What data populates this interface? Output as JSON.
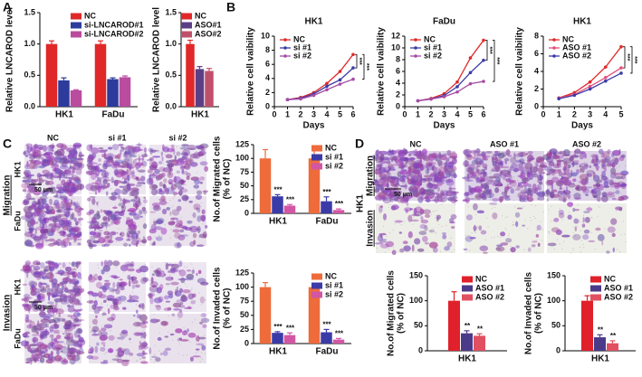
{
  "panel_labels": [
    "A",
    "B",
    "C",
    "D"
  ],
  "micrographs": [
    {
      "columns": [
        "NC",
        "si #1",
        "si #2"
      ],
      "rows": [
        "HK1",
        "FaDu",
        "HK1",
        "FaDu"
      ],
      "groups": [
        "Migration",
        "Invasion"
      ],
      "scale_bar": "50 μm"
    },
    {
      "columns": [
        "NC",
        "ASO #1",
        "ASO #2"
      ],
      "rows": [
        "Migration",
        "Invasion"
      ],
      "group": "HK1",
      "scale_bar": "50 μm"
    }
  ],
  "chart_data": [
    {
      "type": "bar",
      "ylabel": [
        "Relative LNCAROD level"
      ],
      "categories": [
        "HK1",
        "FaDu"
      ],
      "legend": "upper right",
      "ylim": [
        0,
        1.5
      ],
      "yticks": [
        {
          "value": 0,
          "label": "0.0"
        },
        {
          "value": 0.5,
          "label": "0.5"
        },
        {
          "value": 1,
          "label": "1.0"
        },
        {
          "value": 1.5,
          "label": "1.5"
        }
      ],
      "series": [
        {
          "name": "NC",
          "color": "#e02828",
          "values": [
            1.0,
            1.0
          ],
          "errors": [
            0.05,
            0.05
          ]
        },
        {
          "name": "si-LNCAROD#1",
          "color": "#2c3b9c",
          "values": [
            0.42,
            0.44
          ],
          "errors": [
            0.04,
            0.02
          ]
        },
        {
          "name": "si-LNCAROD#2",
          "color": "#b94c9e",
          "values": [
            0.26,
            0.47
          ],
          "errors": [
            0.01,
            0.02
          ]
        }
      ]
    },
    {
      "type": "bar",
      "ylabel": [
        "Relative LNCAROD level"
      ],
      "categories": [
        "HK1"
      ],
      "legend": "upper right",
      "ylim": [
        0,
        1.5
      ],
      "yticks": [
        {
          "value": 0,
          "label": "0.0"
        },
        {
          "value": 0.5,
          "label": "0.5"
        },
        {
          "value": 1,
          "label": "1.0"
        },
        {
          "value": 1.5,
          "label": "1.5"
        }
      ],
      "series": [
        {
          "name": "NC",
          "color": "#e02828",
          "values": [
            1.0
          ],
          "errors": [
            0.06
          ]
        },
        {
          "name": "ASO#1",
          "color": "#5b3f86",
          "values": [
            0.6
          ],
          "errors": [
            0.04
          ]
        },
        {
          "name": "ASO#2",
          "color": "#c0506a",
          "values": [
            0.57
          ],
          "errors": [
            0.04
          ]
        }
      ]
    },
    {
      "type": "line",
      "title": "HK1",
      "ylabel": [
        "Relative cell vaibility"
      ],
      "xlabel": "Days",
      "legend": "upper left",
      "x": [
        1,
        2,
        3,
        4,
        5,
        6
      ],
      "xlim": [
        0,
        6
      ],
      "xticks": [
        0,
        1,
        2,
        3,
        4,
        5,
        6
      ],
      "ylim": [
        0,
        10
      ],
      "yticks": [
        0,
        2,
        4,
        6,
        8,
        10
      ],
      "significance": [
        "***",
        "***"
      ],
      "series": [
        {
          "name": "NC",
          "color": "#e02828",
          "values": [
            1.0,
            1.3,
            2.0,
            3.3,
            5.0,
            7.4
          ]
        },
        {
          "name": "si #1",
          "color": "#3b3ba8",
          "values": [
            1.0,
            1.2,
            1.8,
            2.9,
            3.8,
            5.5
          ]
        },
        {
          "name": "si #2",
          "color": "#a64ca6",
          "values": [
            1.0,
            1.1,
            1.6,
            2.4,
            3.2,
            3.9
          ]
        }
      ]
    },
    {
      "type": "line",
      "title": "FaDu",
      "ylabel": [
        "Relative cell vaibility"
      ],
      "xlabel": "Days",
      "legend": "upper left",
      "x": [
        1,
        2,
        3,
        4,
        5,
        6
      ],
      "xlim": [
        0,
        6
      ],
      "xticks": [
        0,
        1,
        2,
        3,
        4,
        5,
        6
      ],
      "ylim": [
        0,
        12
      ],
      "yticks": [
        0,
        2,
        4,
        6,
        8,
        10,
        12
      ],
      "significance": [
        "***",
        "***"
      ],
      "series": [
        {
          "name": "NC",
          "color": "#e02828",
          "values": [
            1.0,
            1.4,
            2.2,
            4.2,
            8.3,
            11.3
          ]
        },
        {
          "name": "si #1",
          "color": "#3b3ba8",
          "values": [
            1.0,
            1.3,
            1.9,
            3.4,
            5.8,
            7.9
          ]
        },
        {
          "name": "si #2",
          "color": "#a64ca6",
          "values": [
            1.0,
            1.3,
            1.7,
            2.5,
            3.9,
            4.3
          ]
        }
      ]
    },
    {
      "type": "line",
      "title": "HK1",
      "ylabel": [
        "Relative cell vaibility"
      ],
      "xlabel": "Days",
      "legend": "upper left",
      "x": [
        1,
        2,
        3,
        4,
        5
      ],
      "xlim": [
        0,
        5
      ],
      "xticks": [
        0,
        1,
        2,
        3,
        4,
        5
      ],
      "ylim": [
        0,
        8
      ],
      "yticks": [
        0,
        2,
        4,
        6,
        8
      ],
      "significance": [
        "***",
        "***"
      ],
      "series": [
        {
          "name": "NC",
          "color": "#e02828",
          "values": [
            1.0,
            1.6,
            2.8,
            4.5,
            6.8
          ]
        },
        {
          "name": "ASO #1",
          "color": "#e0507a",
          "values": [
            1.0,
            1.4,
            2.3,
            3.3,
            4.4
          ]
        },
        {
          "name": "ASO #2",
          "color": "#3b3ba8",
          "values": [
            0.9,
            1.3,
            2.0,
            2.9,
            3.8
          ]
        }
      ]
    },
    {
      "type": "bar",
      "ylabel": [
        "No.of Migrated cells",
        "(% of NC)"
      ],
      "categories": [
        "HK1",
        "FaDu"
      ],
      "legend": "upper right",
      "ylim": [
        0,
        125
      ],
      "yticks": [
        0,
        25,
        50,
        75,
        100,
        125
      ],
      "series": [
        {
          "name": "NC",
          "color": "#ee6b3b",
          "values": [
            100,
            100
          ],
          "errors": [
            16,
            20
          ]
        },
        {
          "name": "si #1",
          "color": "#3b3ba8",
          "values": [
            31,
            22
          ],
          "errors": [
            3,
            8
          ],
          "significance": [
            "***",
            "***"
          ]
        },
        {
          "name": "si #2",
          "color": "#d256a4",
          "values": [
            14,
            6
          ],
          "errors": [
            2,
            2
          ],
          "significance": [
            "***",
            "***"
          ]
        }
      ]
    },
    {
      "type": "bar",
      "ylabel": [
        "No.of Invaded cells",
        "(% of NC)"
      ],
      "categories": [
        "HK1",
        "FaDu"
      ],
      "legend": "upper right",
      "ylim": [
        0,
        125
      ],
      "yticks": [
        0,
        25,
        50,
        75,
        100,
        125
      ],
      "series": [
        {
          "name": "NC",
          "color": "#ee6b3b",
          "values": [
            100,
            100
          ],
          "errors": [
            8,
            6
          ]
        },
        {
          "name": "si #1",
          "color": "#3b3ba8",
          "values": [
            19,
            20
          ],
          "errors": [
            2,
            5
          ],
          "significance": [
            "***",
            "***"
          ]
        },
        {
          "name": "si #2",
          "color": "#d256a4",
          "values": [
            15,
            7
          ],
          "errors": [
            4,
            2
          ],
          "significance": [
            "***",
            "***"
          ]
        }
      ]
    },
    {
      "type": "bar",
      "ylabel": [
        "No.of Migrated cells",
        "(% of NC)"
      ],
      "categories": [
        "HK1"
      ],
      "legend": "upper right",
      "ylim": [
        0,
        150
      ],
      "yticks": [
        0,
        50,
        100,
        150
      ],
      "series": [
        {
          "name": "NC",
          "color": "#e0202a",
          "values": [
            100
          ],
          "errors": [
            18
          ]
        },
        {
          "name": "ASO #1",
          "color": "#4b3a8a",
          "values": [
            35
          ],
          "errors": [
            5
          ],
          "significance": [
            "**"
          ]
        },
        {
          "name": "ASO #2",
          "color": "#e05060",
          "values": [
            30
          ],
          "errors": [
            4
          ],
          "significance": [
            "**"
          ]
        }
      ]
    },
    {
      "type": "bar",
      "ylabel": [
        "No.of Invaded cells",
        "(% of NC)"
      ],
      "categories": [
        "HK1"
      ],
      "legend": "upper right",
      "ylim": [
        0,
        150
      ],
      "yticks": [
        0,
        50,
        100,
        150
      ],
      "series": [
        {
          "name": "NC",
          "color": "#e0202a",
          "values": [
            100
          ],
          "errors": [
            10
          ]
        },
        {
          "name": "ASO #1",
          "color": "#4b3a8a",
          "values": [
            27
          ],
          "errors": [
            5
          ],
          "significance": [
            "**"
          ]
        },
        {
          "name": "ASO #2",
          "color": "#e05060",
          "values": [
            15
          ],
          "errors": [
            5
          ],
          "significance": [
            "**"
          ]
        }
      ]
    }
  ]
}
